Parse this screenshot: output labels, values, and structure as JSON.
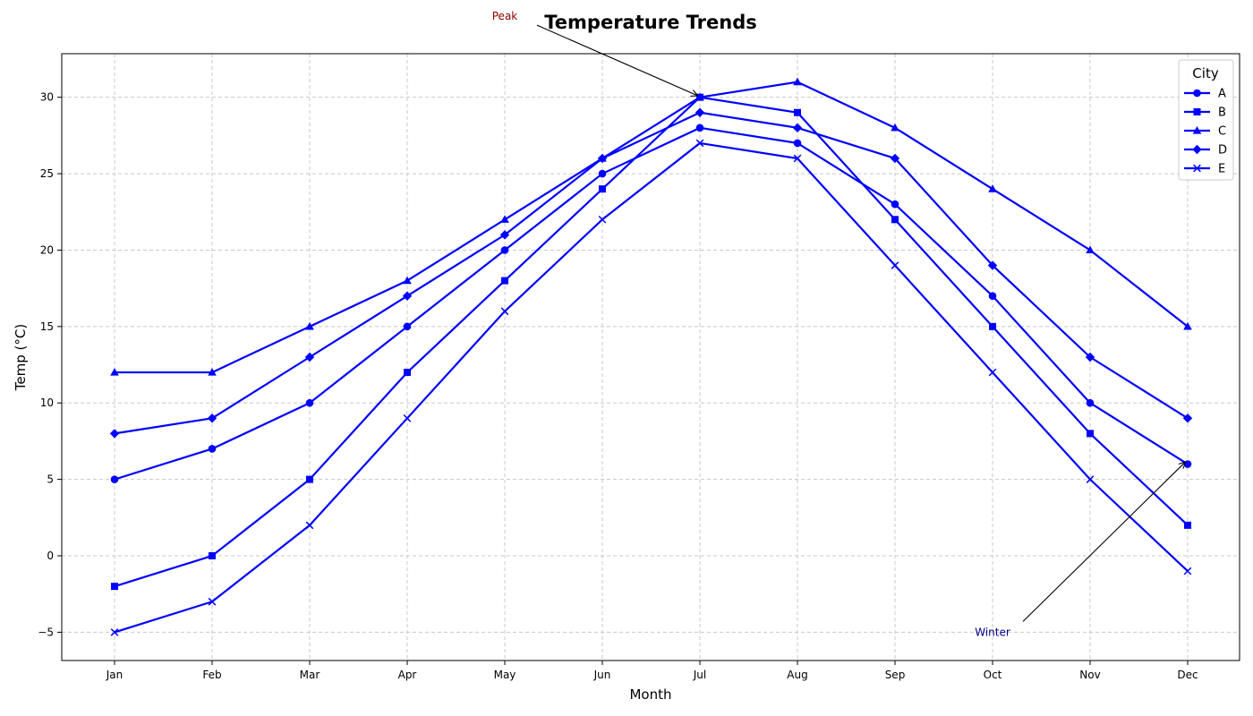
{
  "chart_data": {
    "type": "line",
    "title": "Temperature Trends",
    "xlabel": "Month",
    "ylabel": "Temp (°C)",
    "categories": [
      "Jan",
      "Feb",
      "Mar",
      "Apr",
      "May",
      "Jun",
      "Jul",
      "Aug",
      "Sep",
      "Oct",
      "Nov",
      "Dec"
    ],
    "ylim": [
      -6.85,
      32.85
    ],
    "yticks": [
      -5,
      0,
      5,
      10,
      15,
      20,
      25,
      30
    ],
    "ytick_labels": [
      "−5",
      "0",
      "5",
      "10",
      "15",
      "20",
      "25",
      "30"
    ],
    "grid": true,
    "legend": {
      "title": "City",
      "placement": "top-right"
    },
    "line_color": "#0000ff",
    "series": [
      {
        "name": "A",
        "marker": "circle",
        "values": [
          5,
          7,
          10,
          15,
          20,
          25,
          28,
          27,
          23,
          17,
          10,
          6
        ]
      },
      {
        "name": "B",
        "marker": "square",
        "values": [
          -2,
          0,
          5,
          12,
          18,
          24,
          30,
          29,
          22,
          15,
          8,
          2
        ]
      },
      {
        "name": "C",
        "marker": "triangle",
        "values": [
          12,
          12,
          15,
          18,
          22,
          26,
          30,
          31,
          28,
          24,
          20,
          15
        ]
      },
      {
        "name": "D",
        "marker": "diamond",
        "values": [
          8,
          9,
          13,
          17,
          21,
          26,
          29,
          28,
          26,
          19,
          13,
          9
        ]
      },
      {
        "name": "E",
        "marker": "x",
        "values": [
          -5,
          -3,
          2,
          9,
          16,
          22,
          27,
          26,
          19,
          12,
          5,
          -1
        ]
      }
    ],
    "annotations": [
      {
        "text": "Peak",
        "color": "#8b0000",
        "text_at": [
          "May",
          35.3
        ],
        "point_at": [
          "Jul",
          30
        ]
      },
      {
        "text": "Winter",
        "color": "#00008b",
        "text_at": [
          "Oct",
          -5
        ],
        "point_at": [
          "Dec",
          6
        ]
      }
    ]
  }
}
